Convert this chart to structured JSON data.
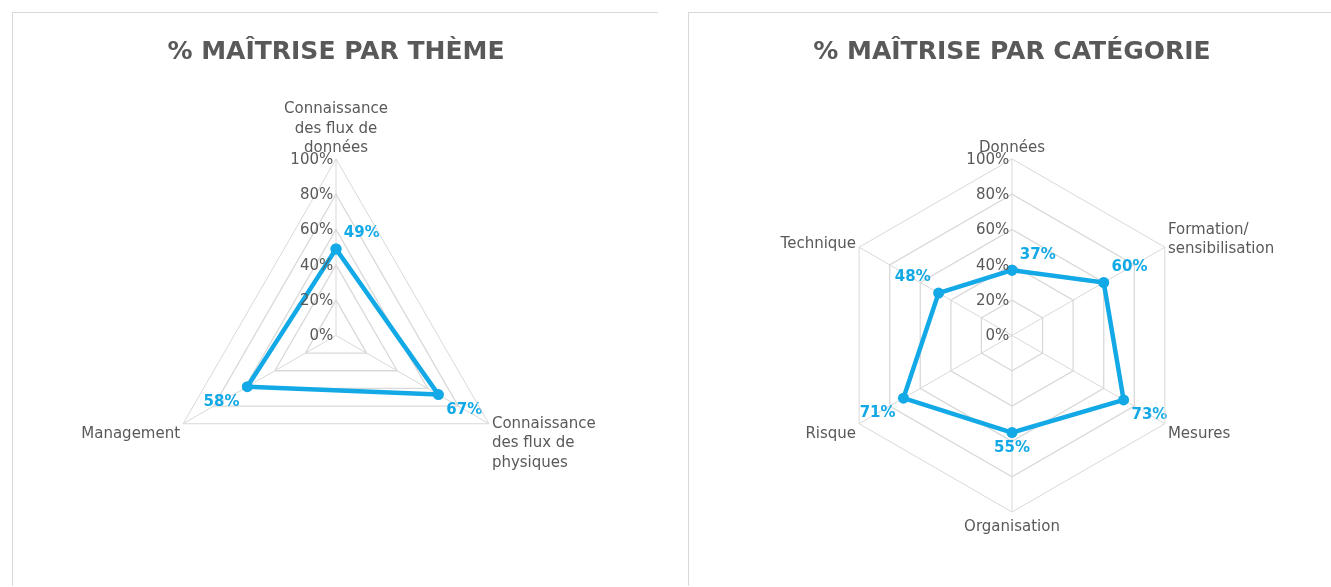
{
  "chart_data": [
    {
      "type": "radar",
      "title": "% MAÎTRISE PAR THÈME",
      "categories": [
        "Connaissance\ndes flux de\ndonnées",
        "Connaissance\ndes flux de\nphysiques",
        "Management"
      ],
      "series": [
        {
          "color": "#12a9e6",
          "values": [
            49,
            67,
            58
          ],
          "value_labels": [
            "49%",
            "67%",
            "58%"
          ]
        }
      ],
      "ylim": [
        0,
        100
      ],
      "yticks": [
        {
          "value": 0,
          "label": "0%"
        },
        {
          "value": 20,
          "label": "20%"
        },
        {
          "value": 40,
          "label": "40%"
        },
        {
          "value": 60,
          "label": "60%"
        },
        {
          "value": 80,
          "label": "80%"
        },
        {
          "value": 100,
          "label": "100%"
        }
      ],
      "grid": true,
      "marker": "circle",
      "line_style": "solid"
    },
    {
      "type": "radar",
      "title": "% MAÎTRISE PAR CATÉGORIE",
      "categories": [
        "Données",
        "Formation/\nsensibilisation",
        "Mesures",
        "Organisation",
        "Risque",
        "Technique"
      ],
      "series": [
        {
          "color": "#12a9e6",
          "values": [
            37,
            60,
            73,
            55,
            71,
            48
          ],
          "value_labels": [
            "37%",
            "60%",
            "73%",
            "55%",
            "71%",
            "48%"
          ]
        }
      ],
      "ylim": [
        0,
        100
      ],
      "yticks": [
        {
          "value": 0,
          "label": "0%"
        },
        {
          "value": 20,
          "label": "20%"
        },
        {
          "value": 40,
          "label": "40%"
        },
        {
          "value": 60,
          "label": "60%"
        },
        {
          "value": 80,
          "label": "80%"
        },
        {
          "value": 100,
          "label": "100%"
        }
      ],
      "grid": true,
      "marker": "circle",
      "line_style": "solid"
    }
  ]
}
